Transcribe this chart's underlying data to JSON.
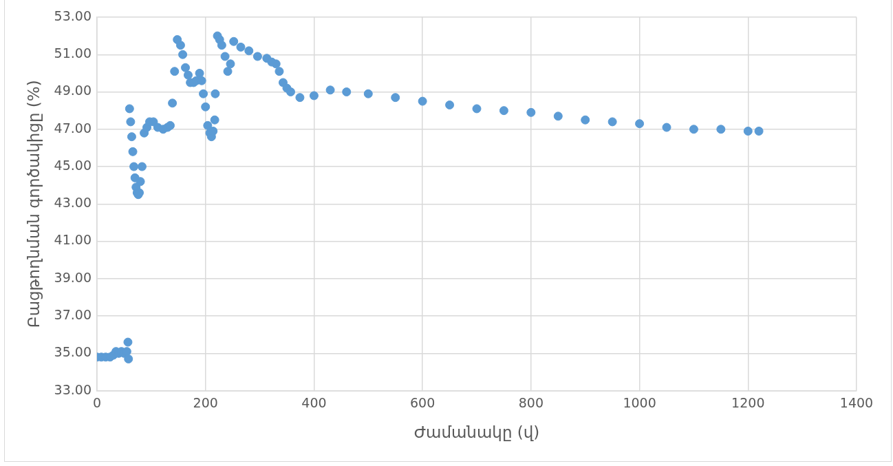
{
  "chart_data": {
    "type": "scatter",
    "xlabel": "Ժամանակը (վ)",
    "ylabel": "Բացթողնման գործակիցը (%)",
    "xlim": [
      0,
      1400
    ],
    "xticks": [
      0,
      200,
      400,
      600,
      800,
      1000,
      1200,
      1400
    ],
    "ylim": [
      33,
      53
    ],
    "yticks": [
      {
        "value": 33,
        "label": "33.00"
      },
      {
        "value": 35,
        "label": "35.00"
      },
      {
        "value": 37,
        "label": "37.00"
      },
      {
        "value": 39,
        "label": "39.00"
      },
      {
        "value": 41,
        "label": "41.00"
      },
      {
        "value": 43,
        "label": "43.00"
      },
      {
        "value": 45,
        "label": "45.00"
      },
      {
        "value": 47,
        "label": "47.00"
      },
      {
        "value": 49,
        "label": "49.00"
      },
      {
        "value": 51,
        "label": "51.00"
      },
      {
        "value": 53,
        "label": "53.00"
      }
    ],
    "grid": true,
    "legend": false,
    "marker": "circle",
    "series": [
      {
        "color": "#5b9bd5",
        "x": [
          0,
          8,
          16,
          24,
          30,
          35,
          40,
          45,
          50,
          55,
          57,
          58,
          60,
          62,
          64,
          66,
          68,
          70,
          72,
          74,
          76,
          78,
          80,
          83,
          87,
          92,
          97,
          104,
          112,
          122,
          130,
          135,
          139,
          143,
          148,
          154,
          158,
          163,
          168,
          172,
          178,
          183,
          189,
          193,
          196,
          200,
          204,
          208,
          211,
          214,
          217,
          218,
          222,
          226,
          230,
          236,
          241,
          246,
          252,
          265,
          280,
          296,
          313,
          322,
          330,
          336,
          343,
          350,
          357,
          374,
          400,
          430,
          460,
          500,
          550,
          600,
          650,
          700,
          750,
          800,
          850,
          900,
          950,
          1000,
          1050,
          1100,
          1150,
          1200,
          1220
        ],
        "values": [
          34.8,
          34.8,
          34.8,
          34.8,
          34.9,
          35.1,
          35.0,
          35.1,
          35.0,
          35.1,
          35.6,
          34.7,
          48.1,
          47.4,
          46.6,
          45.8,
          45.0,
          44.4,
          43.9,
          43.6,
          43.5,
          43.6,
          44.2,
          45.0,
          46.8,
          47.1,
          47.4,
          47.4,
          47.1,
          47.0,
          47.1,
          47.2,
          48.4,
          50.1,
          51.8,
          51.5,
          51.0,
          50.3,
          49.9,
          49.5,
          49.5,
          49.6,
          50.0,
          49.6,
          48.9,
          48.2,
          47.2,
          46.8,
          46.6,
          46.9,
          47.5,
          48.9,
          52.0,
          51.8,
          51.5,
          50.9,
          50.1,
          50.5,
          51.7,
          51.4,
          51.2,
          50.9,
          50.8,
          50.6,
          50.5,
          50.1,
          49.5,
          49.2,
          49.0,
          48.7,
          48.8,
          49.1,
          49.0,
          48.9,
          48.7,
          48.5,
          48.3,
          48.1,
          48.0,
          47.9,
          47.7,
          47.5,
          47.4,
          47.3,
          47.1,
          47.0,
          47.0,
          46.9,
          46.9
        ]
      }
    ]
  }
}
